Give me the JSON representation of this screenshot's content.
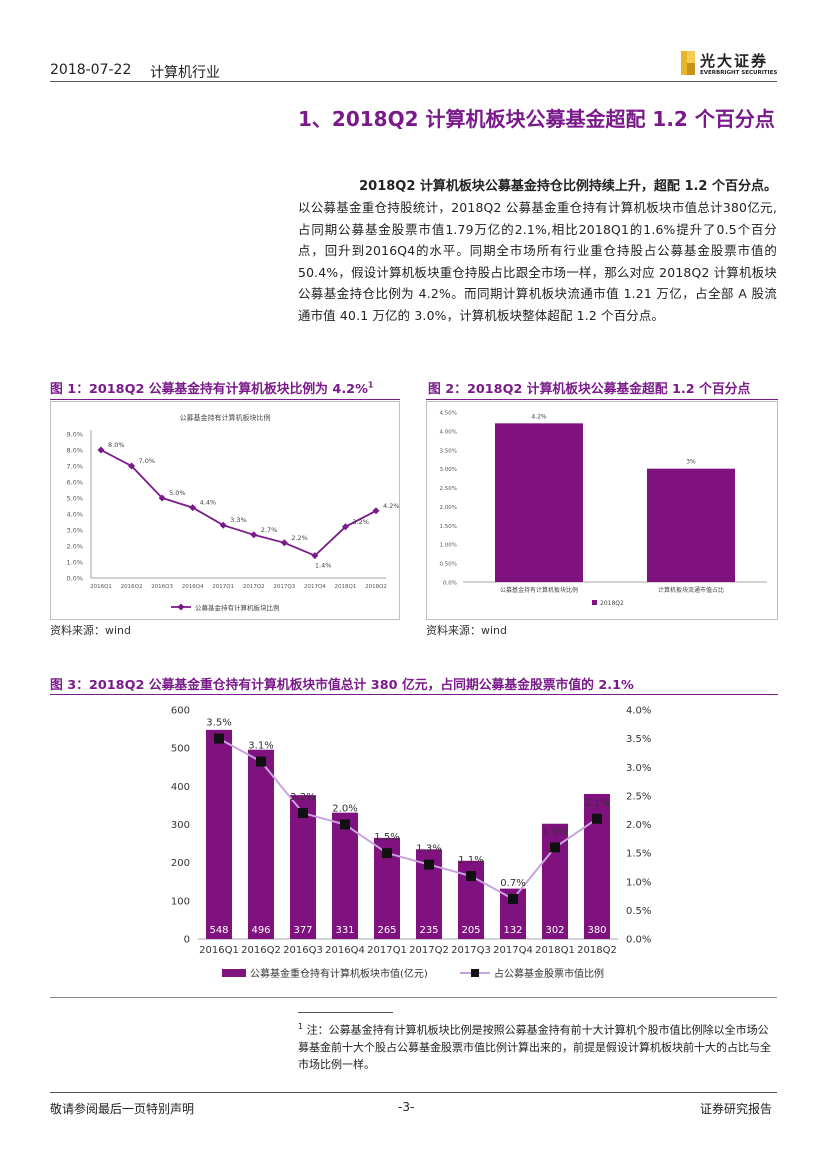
{
  "header": {
    "date": "2018-07-22",
    "industry": "计算机行业",
    "brand_cn": "光大证券",
    "brand_en": "EVERBRIGHT SECURITIES"
  },
  "section": {
    "title": "1、2018Q2 计算机板块公募基金超配 1.2 个百分点",
    "lead": "2018Q2 计算机板块公募基金持仓比例持续上升，超配 1.2 个百分点。",
    "paragraph": "以公募基金重仓持股统计，2018Q2 公募基金重仓持有计算机板块市值总计380亿元,占同期公募基金股票市值1.79万亿的2.1%,相比2018Q1的1.6%提升了0.5个百分点，回升到2016Q4的水平。同期全市场所有行业重仓持股占公募基金股票市值的50.4%，假设计算机板块重仓持股占比跟全市场一样，那么对应 2018Q2 计算机板块公募基金持仓比例为 4.2%。而同期计算机板块流通市值 1.21 万亿，占全部 A 股流通市值 40.1 万亿的 3.0%，计算机板块整体超配 1.2 个百分点。"
  },
  "figure1": {
    "caption": "图 1：2018Q2 公募基金持有计算机板块比例为 4.2%",
    "caption_sup": "1",
    "source": "资料来源：wind"
  },
  "figure2": {
    "caption": "图 2：2018Q2 计算机板块公募基金超配 1.2 个百分点",
    "source": "资料来源：wind"
  },
  "figure3": {
    "caption": "图 3：2018Q2 公募基金重仓持有计算机板块市值总计 380 亿元，占同期公募基金股票市值的 2.1%"
  },
  "footnote": {
    "mark": "1",
    "text": "注：公募基金持有计算机板块比例是按照公募基金持有前十大计算机个股市值比例除以全市场公募基金前十大个股占公募基金股票市值比例计算出来的，前提是假设计算机板块前十大的占比与全市场比例一样。"
  },
  "footer": {
    "left": "敬请参阅最后一页特别声明",
    "center": "-3-",
    "right": "证券研究报告"
  },
  "colors": {
    "accent": "#7a1a8a",
    "bar": "#7f127f",
    "line2": "#c9a3e0",
    "rule": "#555555"
  },
  "chart_data": [
    {
      "type": "line",
      "title": "公募基金持有计算机板块比例",
      "categories": [
        "2016Q1",
        "2016Q2",
        "2016Q3",
        "2016Q4",
        "2017Q1",
        "2017Q2",
        "2017Q3",
        "2017Q4",
        "2018Q1",
        "2018Q2"
      ],
      "series": [
        {
          "name": "公募基金持有计算机板块比例",
          "values": [
            8.0,
            7.0,
            5.0,
            4.4,
            3.3,
            2.7,
            2.2,
            1.4,
            3.2,
            4.2
          ],
          "labels": [
            "8.0%",
            "7.0%",
            "5.0%",
            "4.4%",
            "3.3%",
            "2.7%",
            "2.2%",
            "1.4%",
            "3.2%",
            "4.2%"
          ]
        }
      ],
      "yticks": [
        "0.0%",
        "1.0%",
        "2.0%",
        "3.0%",
        "4.0%",
        "5.0%",
        "6.0%",
        "7.0%",
        "8.0%",
        "9.0%"
      ],
      "ylim": [
        0,
        9
      ],
      "legend": "bottom"
    },
    {
      "type": "bar",
      "categories": [
        "公募基金持有计算机板块比例",
        "计算机板块流通市值占比"
      ],
      "series": [
        {
          "name": "2018Q2",
          "values": [
            4.2,
            3.0
          ],
          "labels": [
            "4.2%",
            "3%"
          ]
        }
      ],
      "yticks": [
        "0.0%",
        "0.50%",
        "1.00%",
        "1.50%",
        "2.00%",
        "2.50%",
        "3.00%",
        "3.50%",
        "4.00%",
        "4.50%"
      ],
      "ylim": [
        0,
        4.5
      ],
      "legend": "bottom"
    },
    {
      "type": "bar",
      "categories": [
        "2016Q1",
        "2016Q2",
        "2016Q3",
        "2016Q4",
        "2017Q1",
        "2017Q2",
        "2017Q3",
        "2017Q4",
        "2018Q1",
        "2018Q2"
      ],
      "series": [
        {
          "name": "公募基金重仓持有计算机板块市值(亿元)",
          "axis": "left",
          "values": [
            548,
            496,
            377,
            331,
            265,
            235,
            205,
            132,
            302,
            380
          ],
          "labels": [
            "548",
            "496",
            "377",
            "331",
            "265",
            "235",
            "205",
            "132",
            "302",
            "380"
          ]
        },
        {
          "name": "占公募基金股票市值比例",
          "axis": "right",
          "type": "line",
          "values": [
            3.5,
            3.1,
            2.2,
            2.0,
            1.5,
            1.3,
            1.1,
            0.7,
            1.6,
            2.1
          ],
          "labels": [
            "3.5%",
            "3.1%",
            "2.2%",
            "2.0%",
            "1.5%",
            "1.3%",
            "1.1%",
            "0.7%",
            "1.6%",
            "2.1%"
          ]
        }
      ],
      "yticks_left": [
        "0",
        "100",
        "200",
        "300",
        "400",
        "500",
        "600"
      ],
      "yticks_right": [
        "0.0%",
        "0.5%",
        "1.0%",
        "1.5%",
        "2.0%",
        "2.5%",
        "3.0%",
        "3.5%",
        "4.0%"
      ],
      "ylim_left": [
        0,
        600
      ],
      "ylim_right": [
        0,
        4.0
      ],
      "legend": "bottom"
    }
  ]
}
